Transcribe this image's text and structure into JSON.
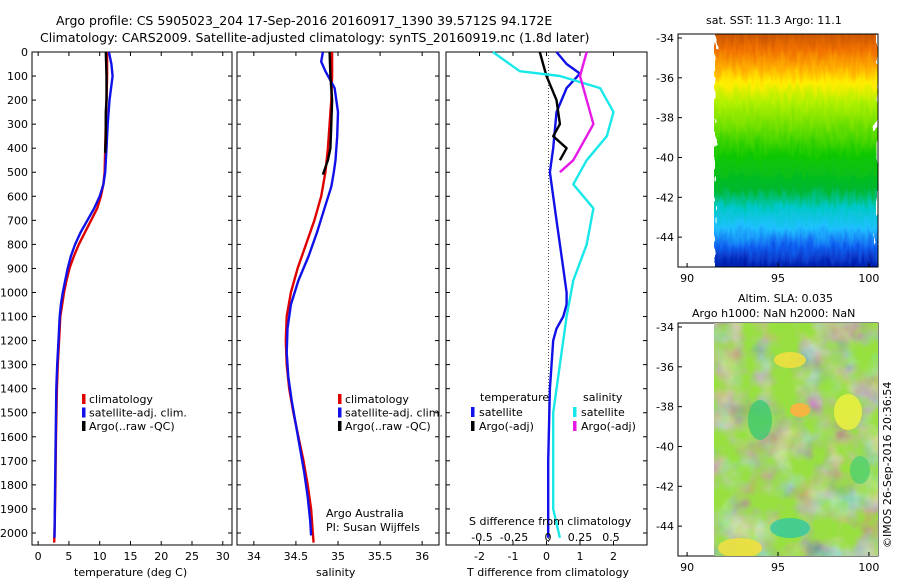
{
  "header": {
    "title_line1": "Argo profile: CS 5905023_204 17-Sep-2016 20160917_1390 39.5712S 94.172E",
    "title_line2": "Climatology: CARS2009. Satellite-adjusted climatology: synTS_20160919.nc (1.8d later)"
  },
  "colors": {
    "climatology": "#e00000",
    "satellite": "#1010e8",
    "argo": "#000000",
    "salinity_satellite": "#19e8e8",
    "salinity_argo": "#e619e6"
  },
  "credits": {
    "line1": "Argo Australia",
    "line2": "PI: Susan Wijffels",
    "imos": "©IMOS 26-Sep-2016 20:36:54"
  },
  "chart_data": [
    {
      "type": "line",
      "id": "temperature",
      "xlabel": "temperature (deg C)",
      "xlim": [
        -1,
        31.5
      ],
      "ylim": [
        2050,
        0
      ],
      "xticks": [
        0,
        5,
        10,
        15,
        20,
        25,
        30
      ],
      "yticks": [
        0,
        100,
        200,
        300,
        400,
        500,
        600,
        700,
        800,
        900,
        1000,
        1100,
        1200,
        1300,
        1400,
        1500,
        1600,
        1700,
        1800,
        1900,
        2000
      ],
      "legend": [
        "climatology",
        "satellite-adj. clim.",
        "Argo(..raw -QC)"
      ],
      "series": [
        {
          "name": "climatology",
          "color": "#e00000",
          "x": [
            11.2,
            11.2,
            11.1,
            11.0,
            10.9,
            10.8,
            10.6,
            10.2,
            9.6,
            8.6,
            7.6,
            6.6,
            5.8,
            5.1,
            4.6,
            4.2,
            3.9,
            3.6,
            3.4,
            3.2,
            3.05,
            2.9,
            2.8,
            2.7,
            2.6
          ],
          "y": [
            0,
            100,
            200,
            300,
            400,
            500,
            550,
            600,
            650,
            700,
            750,
            800,
            850,
            900,
            950,
            1000,
            1050,
            1100,
            1200,
            1300,
            1400,
            1600,
            1800,
            1950,
            2040
          ]
        },
        {
          "name": "satellite-adj. clim.",
          "color": "#1010e8",
          "x": [
            11.5,
            11.9,
            12.1,
            11.6,
            11.3,
            11.1,
            10.9,
            10.6,
            10.0,
            9.1,
            8.0,
            6.9,
            6.0,
            5.3,
            4.8,
            4.4,
            4.0,
            3.7,
            3.5,
            3.3,
            3.1,
            2.95,
            2.85,
            2.75,
            2.65
          ],
          "y": [
            0,
            50,
            100,
            200,
            300,
            400,
            500,
            550,
            600,
            650,
            700,
            750,
            800,
            850,
            900,
            950,
            1000,
            1050,
            1100,
            1200,
            1300,
            1400,
            1600,
            1800,
            2020
          ]
        },
        {
          "name": "Argo(..raw -QC)",
          "color": "#000000",
          "x": [
            11.0,
            11.1,
            11.1,
            11.0,
            11.0,
            11.0,
            10.9
          ],
          "y": [
            0,
            100,
            200,
            250,
            300,
            350,
            420
          ]
        }
      ]
    },
    {
      "type": "line",
      "id": "salinity",
      "xlabel": "salinity",
      "xlim": [
        33.8,
        36.2
      ],
      "ylim": [
        2050,
        0
      ],
      "xticks": [
        34,
        34.5,
        35,
        35.5,
        36
      ],
      "legend": [
        "climatology",
        "satellite-adj. clim.",
        "Argo(..raw -QC)"
      ],
      "series": [
        {
          "name": "climatology",
          "color": "#e00000",
          "x": [
            34.93,
            34.93,
            34.92,
            34.9,
            34.88,
            34.85,
            34.8,
            34.72,
            34.62,
            34.52,
            34.44,
            34.39,
            34.38,
            34.39,
            34.42,
            34.47,
            34.53,
            34.59,
            34.64,
            34.68,
            34.7,
            34.71
          ],
          "y": [
            0,
            100,
            200,
            300,
            400,
            500,
            600,
            700,
            800,
            900,
            1000,
            1100,
            1200,
            1300,
            1400,
            1500,
            1600,
            1700,
            1800,
            1900,
            2000,
            2040
          ]
        },
        {
          "name": "satellite-adj. clim.",
          "color": "#1010e8",
          "x": [
            34.82,
            34.8,
            34.85,
            34.96,
            35.0,
            34.99,
            34.97,
            34.95,
            34.92,
            34.84,
            34.75,
            34.65,
            34.53,
            34.44,
            34.4,
            34.39,
            34.41,
            34.45,
            34.5,
            34.55,
            34.6,
            34.64,
            34.67,
            34.68
          ],
          "y": [
            0,
            40,
            80,
            150,
            250,
            350,
            450,
            500,
            560,
            650,
            750,
            850,
            950,
            1050,
            1150,
            1250,
            1350,
            1450,
            1550,
            1650,
            1750,
            1850,
            1950,
            2010
          ]
        },
        {
          "name": "Argo(..raw -QC)",
          "color": "#000000",
          "x": [
            34.9,
            34.91,
            34.93,
            34.92,
            34.91,
            34.88,
            34.86,
            34.82
          ],
          "y": [
            0,
            100,
            200,
            300,
            400,
            450,
            470,
            510
          ]
        }
      ]
    },
    {
      "type": "line",
      "id": "difference",
      "xlabel": "T difference from climatology",
      "xlabel_top": "S difference from climatology",
      "xlim": [
        -3,
        3
      ],
      "ylim": [
        2050,
        0
      ],
      "xticks": [
        -2,
        -1,
        0,
        1,
        2
      ],
      "xticks_top": [
        -0.5,
        -0.25,
        0,
        0.25,
        0.5
      ],
      "legend_titles": [
        "temperature",
        "salinity"
      ],
      "legend": [
        "satellite",
        "Argo(-adj)",
        "satellite",
        "Argo(-adj)"
      ],
      "series": [
        {
          "name": "satellite",
          "group": "temperature",
          "color": "#1010e8",
          "x": [
            0.3,
            0.6,
            1.0,
            0.6,
            0.3,
            0.2,
            0.1,
            0.2,
            0.3,
            0.4,
            0.5,
            0.6,
            0.6,
            0.5,
            0.3,
            0.2,
            0.1,
            0.05,
            0.05
          ],
          "y": [
            0,
            50,
            90,
            150,
            250,
            400,
            500,
            600,
            700,
            800,
            900,
            1000,
            1050,
            1100,
            1150,
            1200,
            1400,
            1700,
            2020
          ]
        },
        {
          "name": "Argo(-adj)",
          "group": "temperature",
          "color": "#000000",
          "x": [
            -0.2,
            -0.1,
            0.0,
            0.3,
            0.4,
            0.2,
            0.6,
            0.4
          ],
          "y": [
            0,
            50,
            100,
            200,
            300,
            350,
            400,
            450
          ]
        },
        {
          "name": "satellite",
          "group": "salinity",
          "color": "#19e8e8",
          "x": [
            -0.4,
            -0.3,
            -0.2,
            0.1,
            0.4,
            0.5,
            0.45,
            0.3,
            0.2,
            0.35,
            0.3,
            0.2,
            0.15,
            0.1,
            0.05,
            0.05,
            0.05,
            0.1
          ],
          "y": [
            0,
            40,
            80,
            100,
            150,
            250,
            350,
            450,
            550,
            650,
            800,
            950,
            1100,
            1300,
            1500,
            1700,
            1900,
            2020
          ]
        },
        {
          "name": "Argo(-adj)",
          "group": "salinity",
          "color": "#e619e6",
          "x": [
            0.3,
            0.25,
            0.3,
            0.35,
            0.25,
            0.2,
            0.1
          ],
          "y": [
            0,
            100,
            200,
            300,
            400,
            450,
            500
          ]
        }
      ]
    },
    {
      "type": "heatmap",
      "id": "sst-map",
      "title": "sat. SST: 11.3 Argo: 11.1",
      "xlim": [
        89.5,
        100.5
      ],
      "ylim": [
        -45.5,
        -33.8
      ],
      "xticks": [
        90,
        95,
        100
      ],
      "yticks": [
        -34,
        -36,
        -38,
        -40,
        -42,
        -44
      ],
      "colorscale": [
        "#00007f",
        "#0000ff",
        "#00a0ff",
        "#00ffff",
        "#00e000",
        "#80ff00",
        "#ffff00",
        "#ff8000",
        "#ff0000",
        "#800000"
      ]
    },
    {
      "type": "heatmap",
      "id": "sla-map",
      "title": "Altim. SLA: 0.035",
      "subtitle": "Argo h1000: NaN h2000: NaN",
      "xlim": [
        89.5,
        100.5
      ],
      "ylim": [
        -45.5,
        -33.8
      ],
      "xticks": [
        90,
        95,
        100
      ],
      "yticks": [
        -34,
        -36,
        -38,
        -40,
        -42,
        -44
      ],
      "colorscale": [
        "#00c0a0",
        "#40d060",
        "#80e040",
        "#c0f040",
        "#ffff40",
        "#ffc040",
        "#ff9040"
      ]
    }
  ]
}
